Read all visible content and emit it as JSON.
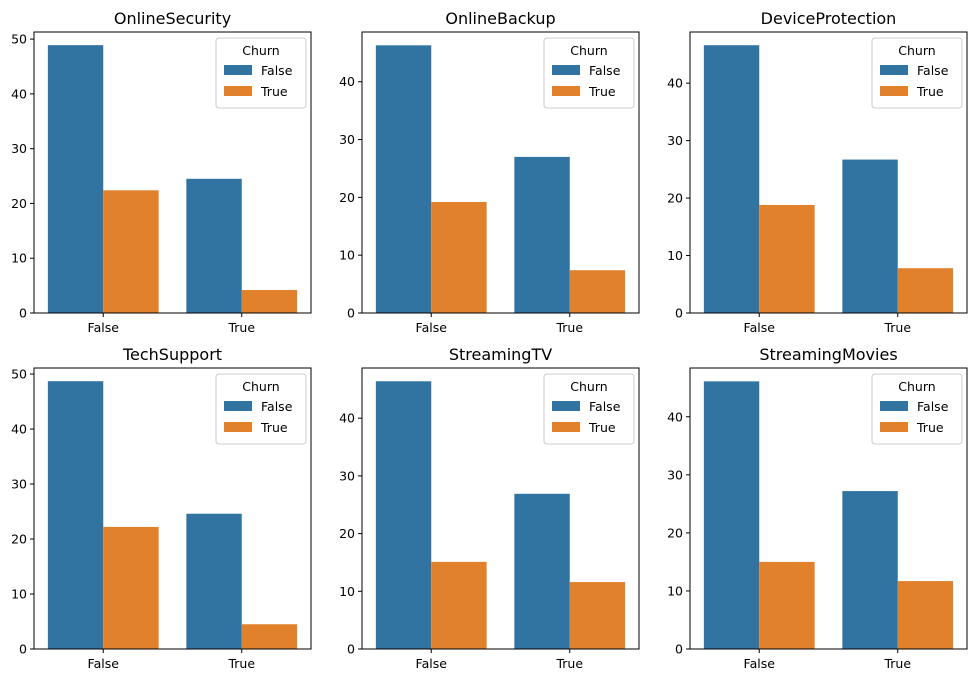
{
  "colors": {
    "False": "#3274a1",
    "True": "#e1812c"
  },
  "chart_data": [
    {
      "type": "bar",
      "title": "OnlineSecurity",
      "categories": [
        "False",
        "True"
      ],
      "series": [
        {
          "name": "False",
          "values": [
            48.9,
            24.5
          ]
        },
        {
          "name": "True",
          "values": [
            22.4,
            4.2
          ]
        }
      ],
      "ylim": [
        0,
        51.3
      ],
      "yticks": [
        0,
        10,
        20,
        30,
        40,
        50
      ],
      "legend": {
        "title": "Churn",
        "placement": "top-right"
      },
      "grid": false
    },
    {
      "type": "bar",
      "title": "OnlineBackup",
      "categories": [
        "False",
        "True"
      ],
      "series": [
        {
          "name": "False",
          "values": [
            46.3,
            27.0
          ]
        },
        {
          "name": "True",
          "values": [
            19.2,
            7.4
          ]
        }
      ],
      "ylim": [
        0,
        48.6
      ],
      "yticks": [
        0,
        10,
        20,
        30,
        40
      ],
      "legend": {
        "title": "Churn",
        "placement": "top-right"
      },
      "grid": false
    },
    {
      "type": "bar",
      "title": "DeviceProtection",
      "categories": [
        "False",
        "True"
      ],
      "series": [
        {
          "name": "False",
          "values": [
            46.6,
            26.7
          ]
        },
        {
          "name": "True",
          "values": [
            18.8,
            7.8
          ]
        }
      ],
      "ylim": [
        0,
        48.9
      ],
      "yticks": [
        0,
        10,
        20,
        30,
        40
      ],
      "legend": {
        "title": "Churn",
        "placement": "top-right"
      },
      "grid": false
    },
    {
      "type": "bar",
      "title": "TechSupport",
      "categories": [
        "False",
        "True"
      ],
      "series": [
        {
          "name": "False",
          "values": [
            48.7,
            24.6
          ]
        },
        {
          "name": "True",
          "values": [
            22.2,
            4.5
          ]
        }
      ],
      "ylim": [
        0,
        51.1
      ],
      "yticks": [
        0,
        10,
        20,
        30,
        40,
        50
      ],
      "legend": {
        "title": "Churn",
        "placement": "top-right"
      },
      "grid": false
    },
    {
      "type": "bar",
      "title": "StreamingTV",
      "categories": [
        "False",
        "True"
      ],
      "series": [
        {
          "name": "False",
          "values": [
            46.4,
            26.9
          ]
        },
        {
          "name": "True",
          "values": [
            15.1,
            11.6
          ]
        }
      ],
      "ylim": [
        0,
        48.7
      ],
      "yticks": [
        0,
        10,
        20,
        30,
        40
      ],
      "legend": {
        "title": "Churn",
        "placement": "top-right"
      },
      "grid": false
    },
    {
      "type": "bar",
      "title": "StreamingMovies",
      "categories": [
        "False",
        "True"
      ],
      "series": [
        {
          "name": "False",
          "values": [
            46.1,
            27.2
          ]
        },
        {
          "name": "True",
          "values": [
            15.0,
            11.7
          ]
        }
      ],
      "ylim": [
        0,
        48.4
      ],
      "yticks": [
        0,
        10,
        20,
        30,
        40
      ],
      "legend": {
        "title": "Churn",
        "placement": "top-right"
      },
      "grid": false
    }
  ]
}
